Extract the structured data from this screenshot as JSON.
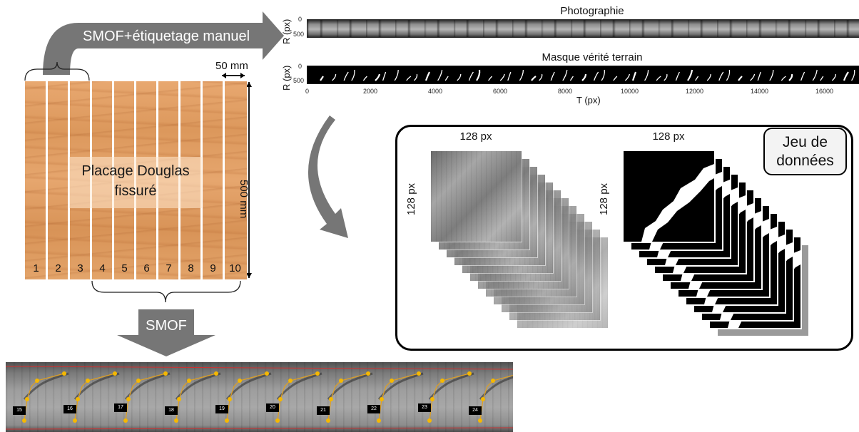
{
  "top_arrow": {
    "label": "SMOF+étiquetage manuel"
  },
  "veneer": {
    "label_line1": "Placage Douglas",
    "label_line2": "fissuré",
    "strip_numbers": [
      "1",
      "2",
      "3",
      "4",
      "5",
      "6",
      "7",
      "8",
      "9",
      "10"
    ],
    "width_label": "50 mm",
    "height_label": "500 mm",
    "wood_color": "#e0a064"
  },
  "down_arrow": {
    "label": "SMOF"
  },
  "photo_plot": {
    "title": "Photographie",
    "ylabel": "R (px)",
    "yticks": [
      "0",
      "500"
    ]
  },
  "mask_plot": {
    "title": "Masque vérité terrain",
    "ylabel": "R (px)",
    "yticks": [
      "0",
      "500"
    ],
    "xlabel": "T (px)",
    "xticks": [
      "0",
      "2000",
      "4000",
      "6000",
      "8000",
      "10000",
      "12000",
      "14000",
      "16000"
    ]
  },
  "dataset": {
    "tag_line1": "Jeu de",
    "tag_line2": "données",
    "photo_width_label": "128 px",
    "photo_height_label": "128 px",
    "mask_width_label": "128 px",
    "mask_height_label": "128 px"
  },
  "bottom_strip": {
    "crack_labels": [
      "15",
      "16",
      "17",
      "18",
      "19",
      "20",
      "21",
      "22",
      "23",
      "24"
    ],
    "point_color": "#f5b800",
    "line_color": "#e0a020",
    "boundary_color": "#d03030"
  }
}
